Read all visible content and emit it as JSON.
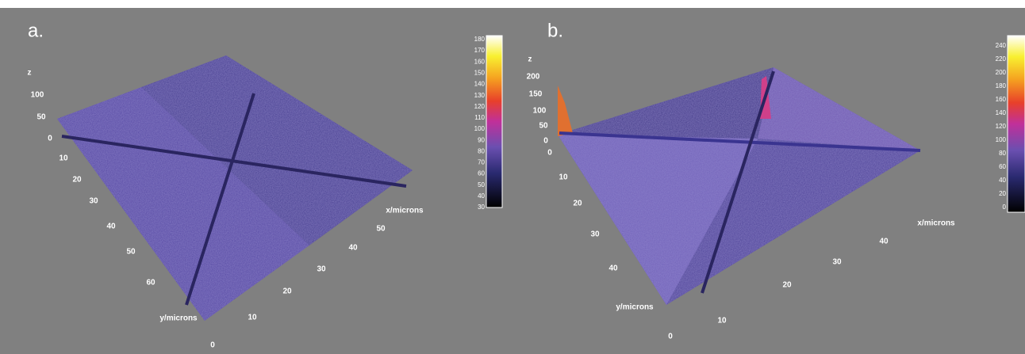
{
  "panels": [
    {
      "label": "a.",
      "z_axis": {
        "label": "z",
        "ticks": [
          100,
          50,
          0
        ]
      },
      "y_axis": {
        "label": "y/microns",
        "ticks": [
          10,
          20,
          30,
          40,
          50,
          60,
          0
        ]
      },
      "x_axis": {
        "label": "x/microns",
        "ticks": [
          10,
          20,
          30,
          40,
          50
        ]
      },
      "colorbar": {
        "ticks": [
          180,
          170,
          160,
          150,
          140,
          130,
          120,
          110,
          100,
          90,
          80,
          70,
          60,
          50,
          40,
          30
        ]
      }
    },
    {
      "label": "b.",
      "z_axis": {
        "label": "z",
        "ticks": [
          200,
          150,
          100,
          50,
          0
        ]
      },
      "y_axis": {
        "label": "y/microns",
        "ticks": [
          0,
          10,
          20,
          30,
          40
        ]
      },
      "x_axis": {
        "label": "x/microns",
        "ticks": [
          0,
          10,
          20,
          30,
          40
        ]
      },
      "colorbar": {
        "ticks": [
          240,
          220,
          200,
          180,
          160,
          140,
          120,
          100,
          80,
          60,
          40,
          20,
          0
        ]
      }
    }
  ]
}
